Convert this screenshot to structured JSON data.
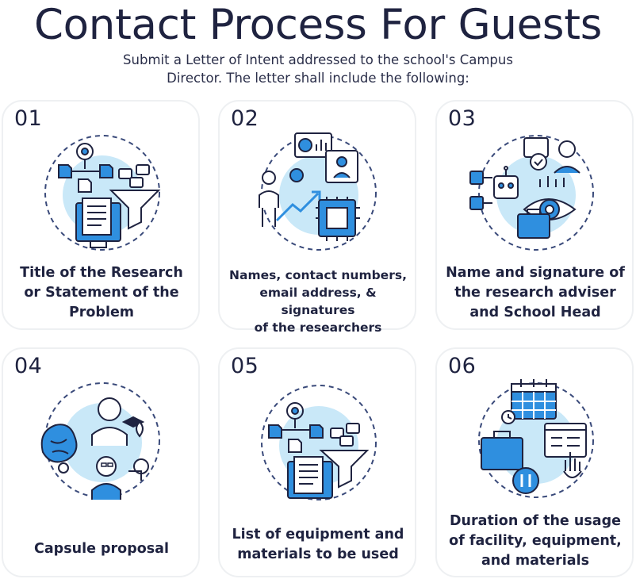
{
  "title": "Contact Process For Guests",
  "subtitle": "Submit a Letter of Intent addressed to the school's Campus\nDirector. The letter shall include the following:",
  "colors": {
    "navy": "#1f2340",
    "blue": "#2f8fdf",
    "light_blue": "#c9e8f8",
    "dash": "#3a4a7a"
  },
  "steps": [
    {
      "number": "01",
      "text": "Title of the Research\nor Statement of the\nProblem",
      "icon": "funnel-documents-icon"
    },
    {
      "number": "02",
      "text": "Names, contact numbers,\nemail address, & signatures\nof the researchers",
      "icon": "person-chip-growth-icon"
    },
    {
      "number": "03",
      "text": "Name and signature of\nthe research adviser\nand School Head",
      "icon": "robot-eye-network-icon"
    },
    {
      "number": "04",
      "text": "Capsule proposal",
      "icon": "brain-people-idea-icon"
    },
    {
      "number": "05",
      "text": "List of equipment and\nmaterials to be used",
      "icon": "funnel-documents-icon"
    },
    {
      "number": "06",
      "text": "Duration of the usage\nof facility, equipment,\nand materials",
      "icon": "calendar-briefcase-icon"
    }
  ]
}
